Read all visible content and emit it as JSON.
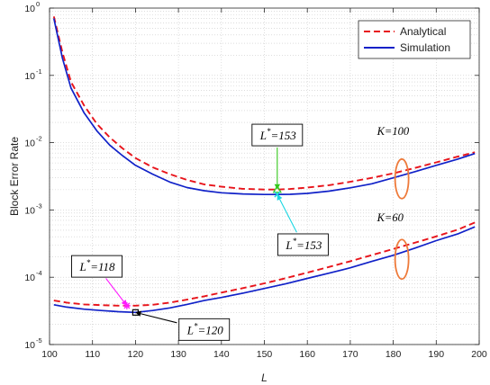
{
  "chart_data": {
    "type": "line",
    "xlabel": "L",
    "ylabel": "Block Error Rate",
    "xlim": [
      100,
      200
    ],
    "ylim": [
      1e-05,
      1
    ],
    "y_scale": "log",
    "grid": true,
    "grid_minor": true,
    "legend_position": "top-right",
    "x_ticks": [
      "100",
      "110",
      "120",
      "130",
      "140",
      "150",
      "160",
      "170",
      "180",
      "190",
      "200"
    ],
    "y_ticks": [
      {
        "value": 1e-05,
        "base": "10",
        "exp": "-5"
      },
      {
        "value": 0.0001,
        "base": "10",
        "exp": "-4"
      },
      {
        "value": 0.001,
        "base": "10",
        "exp": "-3"
      },
      {
        "value": 0.01,
        "base": "10",
        "exp": "-2"
      },
      {
        "value": 0.1,
        "base": "10",
        "exp": "-1"
      },
      {
        "value": 1,
        "base": "10",
        "exp": "0"
      }
    ],
    "series": [
      {
        "name": "Analytical",
        "color": "#e8141b",
        "dash": "dashed",
        "group": "K=100",
        "x": [
          101,
          103,
          105,
          108,
          111,
          114,
          117,
          120,
          124,
          128,
          132,
          136,
          140,
          145,
          150,
          153,
          156,
          160,
          165,
          170,
          175,
          180,
          185,
          190,
          195,
          199
        ],
        "y": [
          0.75,
          0.22,
          0.08,
          0.036,
          0.019,
          0.012,
          0.0082,
          0.0059,
          0.0043,
          0.0034,
          0.0028,
          0.0024,
          0.00222,
          0.00206,
          0.00201,
          0.00201,
          0.00205,
          0.00215,
          0.00233,
          0.00262,
          0.003,
          0.0035,
          0.0042,
          0.0051,
          0.0062,
          0.0072
        ]
      },
      {
        "name": "Simulation",
        "color": "#1021c8",
        "dash": "solid",
        "group": "K=100",
        "x": [
          101,
          103,
          105,
          108,
          111,
          114,
          117,
          120,
          124,
          128,
          132,
          136,
          140,
          145,
          150,
          153,
          156,
          160,
          165,
          170,
          175,
          180,
          185,
          190,
          195,
          199
        ],
        "y": [
          0.7,
          0.18,
          0.065,
          0.028,
          0.015,
          0.0092,
          0.0064,
          0.0046,
          0.0034,
          0.0026,
          0.00215,
          0.00193,
          0.0018,
          0.00173,
          0.0017,
          0.0017,
          0.00171,
          0.00176,
          0.0019,
          0.00213,
          0.00245,
          0.003,
          0.0037,
          0.0046,
          0.0057,
          0.0069
        ]
      },
      {
        "name": "Analytical",
        "color": "#e8141b",
        "dash": "dashed",
        "group": "K=60",
        "x": [
          101,
          104,
          108,
          112,
          116,
          118,
          120,
          124,
          128,
          132,
          136,
          140,
          145,
          150,
          155,
          160,
          165,
          170,
          175,
          180,
          185,
          190,
          195,
          199
        ],
        "y": [
          4.5e-05,
          4.2e-05,
          3.95e-05,
          3.85e-05,
          3.78e-05,
          3.77e-05,
          3.78e-05,
          3.9e-05,
          4.2e-05,
          4.65e-05,
          5.2e-05,
          5.9e-05,
          6.9e-05,
          8.1e-05,
          9.7e-05,
          0.000117,
          0.000142,
          0.000173,
          0.000213,
          0.000263,
          0.000325,
          0.000405,
          0.00051,
          0.00065
        ]
      },
      {
        "name": "Simulation",
        "color": "#1021c8",
        "dash": "solid",
        "group": "K=60",
        "x": [
          101,
          104,
          108,
          112,
          116,
          120,
          124,
          128,
          132,
          136,
          140,
          145,
          150,
          155,
          160,
          165,
          170,
          175,
          180,
          185,
          190,
          195,
          199
        ],
        "y": [
          3.9e-05,
          3.6e-05,
          3.35e-05,
          3.2e-05,
          3.08e-05,
          3e-05,
          3.2e-05,
          3.5e-05,
          3.95e-05,
          4.5e-05,
          5e-05,
          5.8e-05,
          6.8e-05,
          8e-05,
          9.6e-05,
          0.000115,
          0.000138,
          0.000172,
          0.000212,
          0.00027,
          0.00035,
          0.00044,
          0.00056
        ]
      }
    ],
    "legend": [
      {
        "label": "Analytical",
        "color": "#e8141b",
        "dash": "dashed"
      },
      {
        "label": "Simulation",
        "color": "#1021c8",
        "dash": "solid"
      }
    ],
    "group_labels": [
      {
        "text": "K=100",
        "x": 180,
        "y": 0.013
      },
      {
        "text": "K=60",
        "x": 180,
        "y": 0.00068
      }
    ],
    "ellipses": [
      {
        "x": 182,
        "y": 0.0029,
        "color": "#ee7a3a"
      },
      {
        "x": 182,
        "y": 0.000185,
        "color": "#ee7a3a"
      }
    ],
    "annotations": [
      {
        "main": "L",
        "sup": "*",
        "rest": "=153",
        "box_x": 153,
        "box_y": 0.013,
        "arrow_color": "#33c81a",
        "marker": "triangle",
        "mx": 153,
        "my": 0.00201
      },
      {
        "main": "L",
        "sup": "*",
        "rest": "=153",
        "box_x": 159,
        "box_y": 0.000305,
        "arrow_color": "#19d6e2",
        "marker": "x",
        "mx": 153,
        "my": 0.0017
      },
      {
        "main": "L",
        "sup": "*",
        "rest": "=118",
        "box_x": 111,
        "box_y": 0.000145,
        "arrow_color": "#ff19ff",
        "marker": "star",
        "mx": 118,
        "my": 3.77e-05
      },
      {
        "main": "L",
        "sup": "*",
        "rest": "=120",
        "box_x": 136,
        "box_y": 1.67e-05,
        "arrow_color": "#000000",
        "marker": "square",
        "mx": 120,
        "my": 3e-05
      }
    ]
  }
}
